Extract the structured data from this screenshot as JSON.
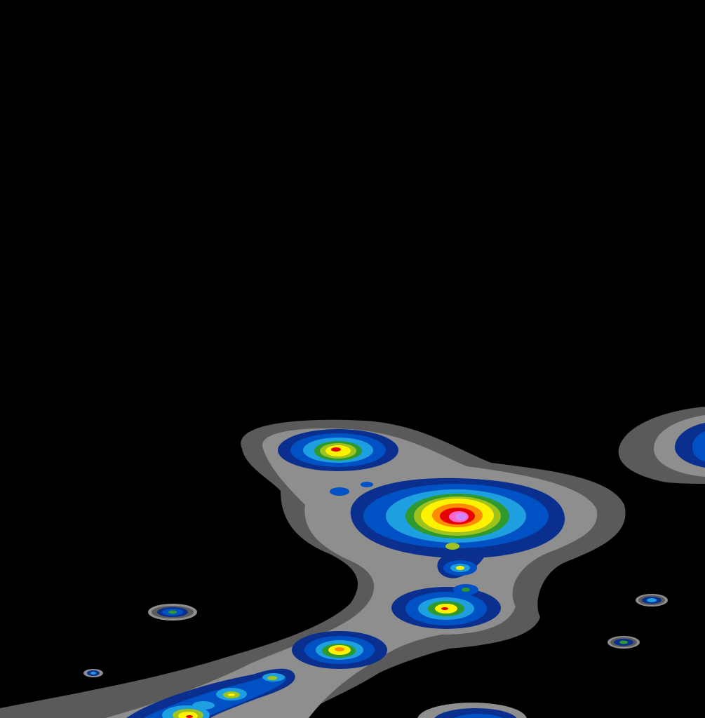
{
  "map": {
    "kind": "weather-radar-reflectivity",
    "background": "#000000",
    "palette": {
      "level1": "#5a5a5a",
      "level2": "#8e8e8e",
      "level3": "#0a2f8f",
      "level4": "#0052c4",
      "level5": "#1ea0e0",
      "level6": "#2e9a2e",
      "level7": "#9ec21e",
      "level8": "#fff200",
      "level9": "#ff8c00",
      "level10": "#e60000",
      "level11": "#ff66cc",
      "level12": "#cc88ff"
    },
    "cells": [
      {
        "id": "cell-north-1",
        "peak": 10
      },
      {
        "id": "cell-main",
        "peak": 12
      },
      {
        "id": "cell-south-1",
        "peak": 8
      },
      {
        "id": "cell-south-2",
        "peak": 9
      },
      {
        "id": "cell-south-3",
        "peak": 10
      },
      {
        "id": "cell-southwest-band",
        "peak": 10
      },
      {
        "id": "cell-east-edge",
        "peak": 4
      },
      {
        "id": "cell-bottom",
        "peak": 5
      },
      {
        "id": "speck-west",
        "peak": 6
      },
      {
        "id": "speck-far-west",
        "peak": 4
      },
      {
        "id": "speck-east-1",
        "peak": 6
      },
      {
        "id": "speck-east-2",
        "peak": 6
      }
    ]
  }
}
